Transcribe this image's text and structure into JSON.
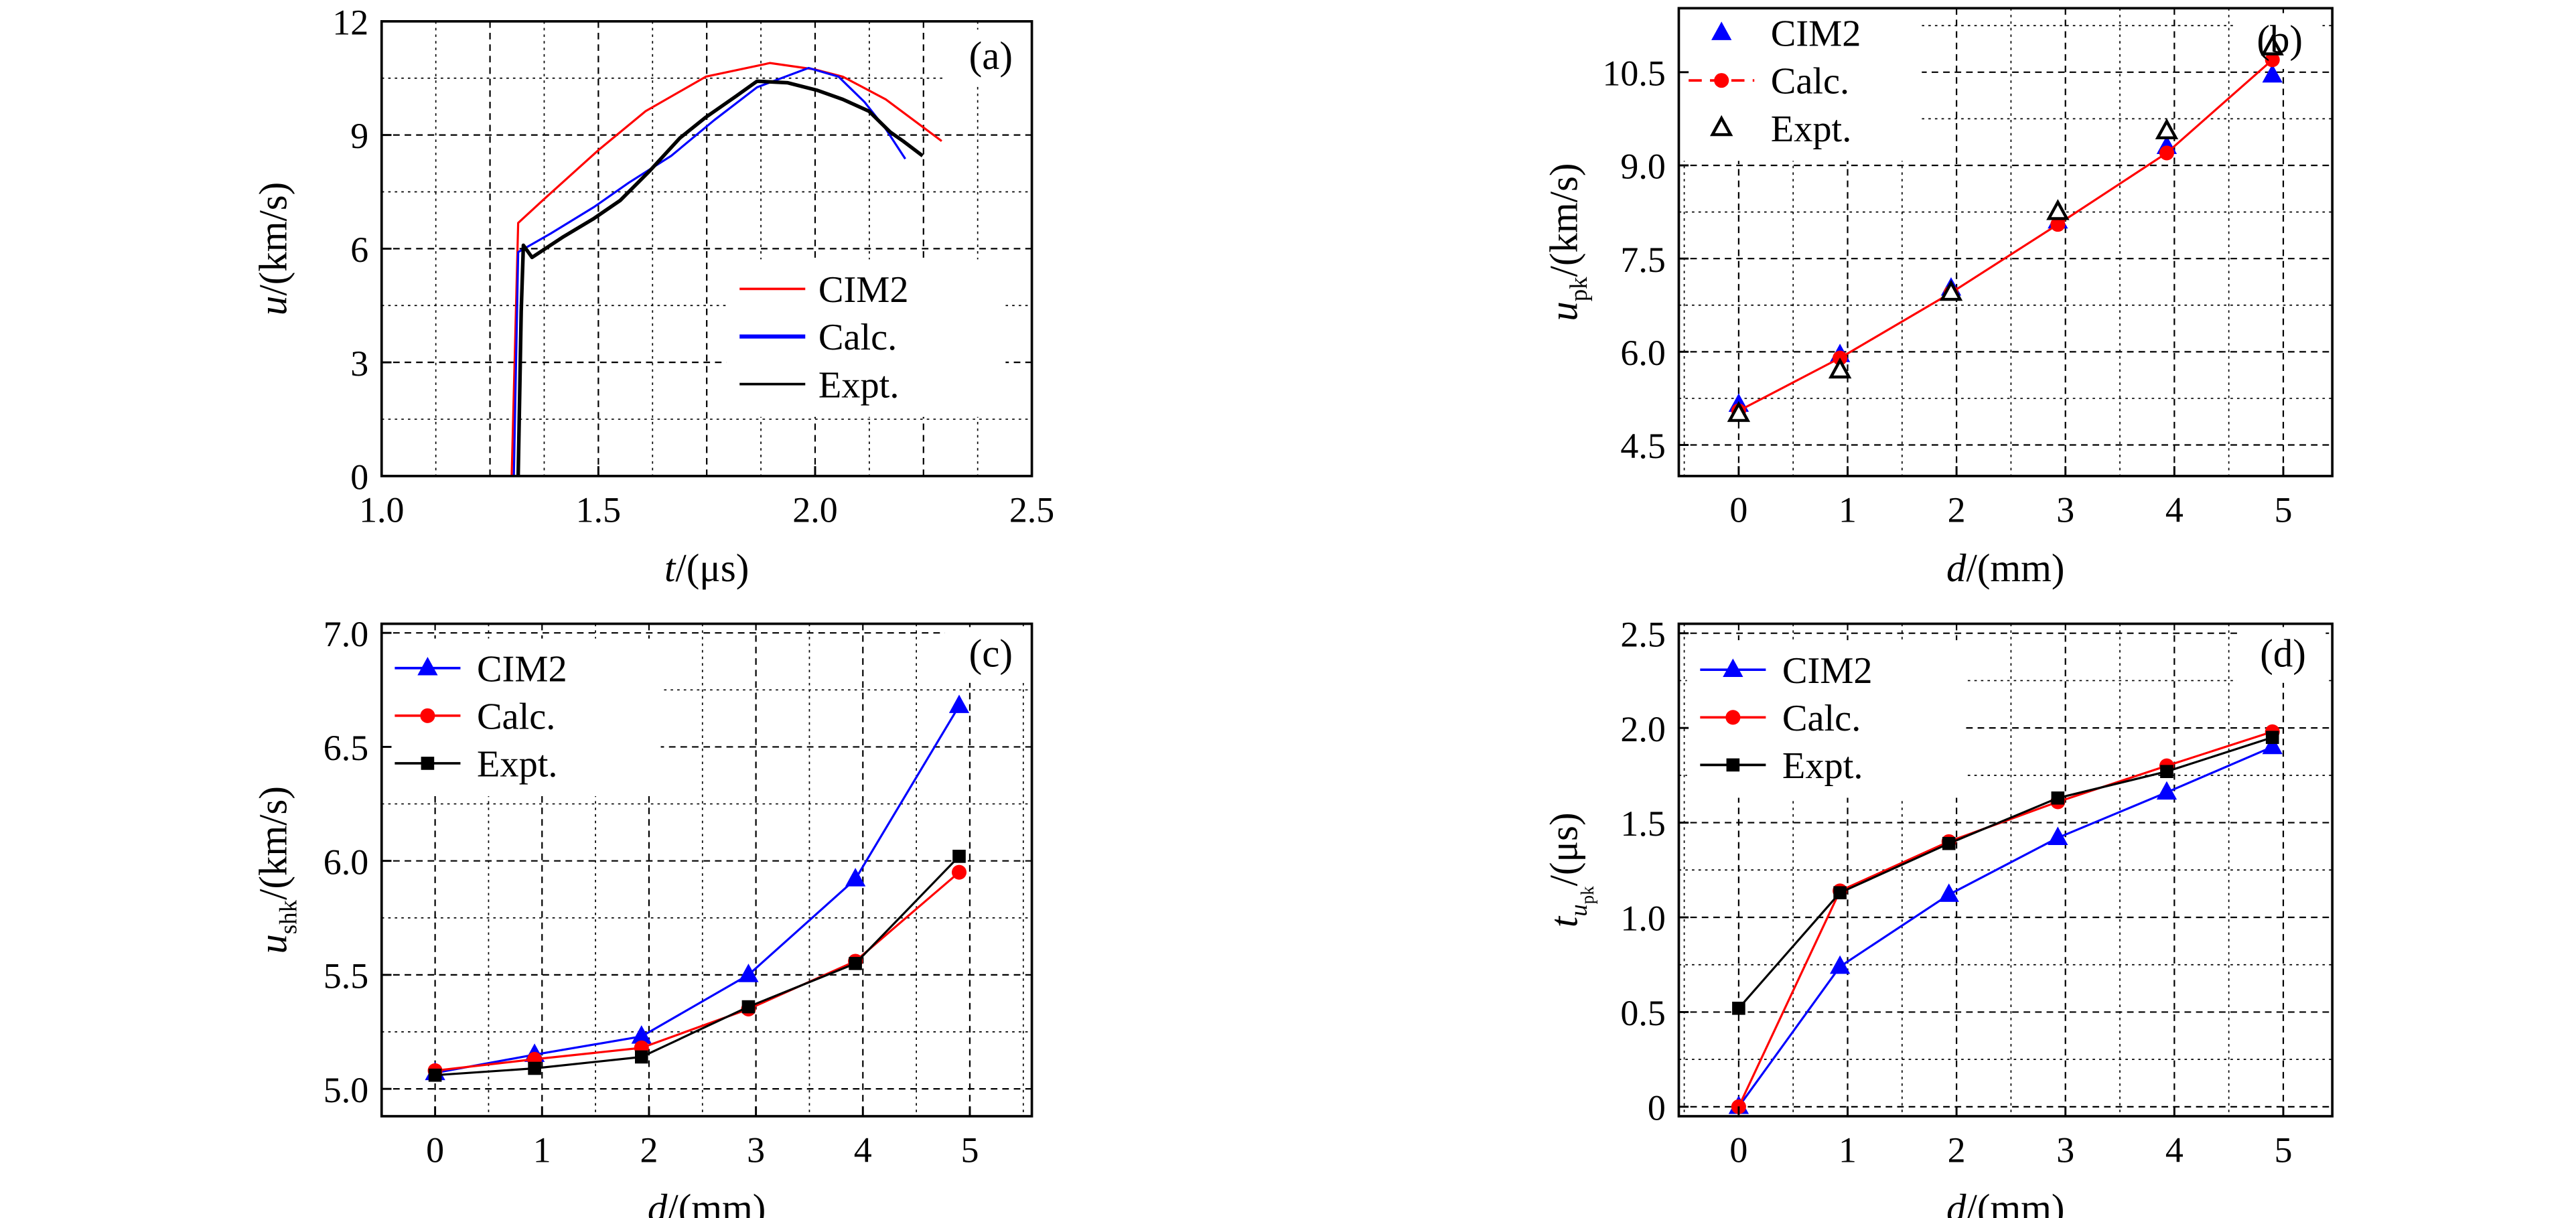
{
  "chart_data": [
    {
      "type": "line",
      "panel": "(a)",
      "xlabel": {
        "symbol": "t",
        "unit": "/(μs)"
      },
      "ylabel": {
        "symbol": "u",
        "sub": "",
        "subsub": "",
        "unit": "/(km/s)"
      },
      "xlim": [
        1.0,
        2.5
      ],
      "ylim": [
        0,
        12
      ],
      "xticks": [
        "1.0",
        "1.5",
        "2.0",
        "2.5"
      ],
      "yticks": [
        "0",
        "3",
        "6",
        "9",
        "12"
      ],
      "grid": true,
      "legend": "bottom-right",
      "series": [
        {
          "name": "CIM2",
          "color": "#ff0000",
          "marker": "none",
          "x": [
            1.3,
            1.315,
            1.371,
            1.5,
            1.609,
            1.748,
            1.896,
            2.0,
            2.064,
            2.163,
            2.292
          ],
          "y": [
            0,
            6.68,
            7.27,
            8.6,
            9.63,
            10.54,
            10.9,
            10.73,
            10.54,
            9.94,
            8.84
          ]
        },
        {
          "name": "Calc.",
          "color": "#0000ff",
          "marker": "none",
          "x": [
            1.305,
            1.315,
            1.39,
            1.49,
            1.57,
            1.668,
            1.767,
            1.866,
            1.985,
            2.054,
            2.114,
            2.163,
            2.208
          ],
          "y": [
            0,
            5.91,
            6.4,
            7.1,
            7.74,
            8.45,
            9.39,
            10.26,
            10.77,
            10.54,
            9.87,
            9.16,
            8.37
          ]
        },
        {
          "name": "Expt.",
          "color": "#000000",
          "marker": "none",
          "x": [
            1.315,
            1.322,
            1.327,
            1.347,
            1.42,
            1.49,
            1.55,
            1.619,
            1.688,
            1.748,
            1.817,
            1.866,
            1.936,
            2.005,
            2.064,
            2.124,
            2.173,
            2.203,
            2.248
          ],
          "y": [
            0,
            4.35,
            6.09,
            5.77,
            6.32,
            6.8,
            7.27,
            8.06,
            8.92,
            9.47,
            10.02,
            10.42,
            10.38,
            10.18,
            9.94,
            9.63,
            9.08,
            8.84,
            8.45
          ]
        }
      ]
    },
    {
      "type": "scatter",
      "panel": "(b)",
      "xlabel": {
        "symbol": "d",
        "unit": "/(mm)"
      },
      "ylabel": {
        "symbol": "u",
        "sub": "pk",
        "subsub": "",
        "unit": "/(km/s)"
      },
      "xlim": [
        -0.55,
        5.45
      ],
      "ylim": [
        4.0,
        11.53
      ],
      "xticks": [
        "0",
        "1",
        "2",
        "3",
        "4",
        "5"
      ],
      "yticks": [
        "4.5",
        "6.0",
        "7.5",
        "9.0",
        "10.5"
      ],
      "grid": true,
      "legend": "top-left",
      "series": [
        {
          "name": "CIM2",
          "color": "#0000ff",
          "marker": "triangle",
          "line": false,
          "x": [
            0,
            0.93,
            1.95,
            2.93,
            3.93,
            4.9
          ],
          "y": [
            5.15,
            5.95,
            7.02,
            8.1,
            9.3,
            10.45
          ]
        },
        {
          "name": "Calc.",
          "color": "#ff0000",
          "marker": "circle",
          "line": true,
          "x": [
            0,
            0.93,
            1.95,
            2.93,
            3.93,
            4.9
          ],
          "y": [
            5.05,
            5.9,
            6.95,
            8.05,
            9.2,
            10.7
          ]
        },
        {
          "name": "Expt.",
          "color": "#000000",
          "marker": "open-triangle",
          "line": false,
          "x": [
            0,
            0.93,
            1.95,
            2.93,
            3.93,
            4.9
          ],
          "y": [
            5.0,
            5.7,
            6.95,
            8.25,
            9.55,
            10.9
          ]
        }
      ]
    },
    {
      "type": "line",
      "panel": "(c)",
      "xlabel": {
        "symbol": "d",
        "unit": "/(mm)"
      },
      "ylabel": {
        "symbol": "u",
        "sub": "shk",
        "subsub": "",
        "unit": "/(km/s)"
      },
      "xlim": [
        -0.5,
        5.58
      ],
      "ylim": [
        4.88,
        7.04
      ],
      "xticks": [
        "0",
        "1",
        "2",
        "3",
        "4",
        "5"
      ],
      "yticks": [
        "5.0",
        "5.5",
        "6.0",
        "6.5",
        "7.0"
      ],
      "grid": true,
      "legend": "top-left",
      "series": [
        {
          "name": "CIM2",
          "color": "#0000ff",
          "marker": "triangle",
          "line": true,
          "x": [
            0,
            0.93,
            1.93,
            2.93,
            3.93,
            4.9
          ],
          "y": [
            5.07,
            5.15,
            5.23,
            5.5,
            5.92,
            6.68
          ]
        },
        {
          "name": "Calc.",
          "color": "#ff0000",
          "marker": "circle",
          "line": true,
          "x": [
            0,
            0.93,
            1.93,
            2.93,
            3.93,
            4.9
          ],
          "y": [
            5.08,
            5.13,
            5.18,
            5.35,
            5.56,
            5.95
          ]
        },
        {
          "name": "Expt.",
          "color": "#000000",
          "marker": "square",
          "line": true,
          "x": [
            0,
            0.93,
            1.93,
            2.93,
            3.93,
            4.9
          ],
          "y": [
            5.06,
            5.09,
            5.14,
            5.36,
            5.55,
            6.02
          ]
        }
      ]
    },
    {
      "type": "line",
      "panel": "(d)",
      "xlabel": {
        "symbol": "d",
        "unit": "/(mm)"
      },
      "ylabel": {
        "symbol": "t",
        "sub": "u",
        "subsub": "pk",
        "unit": "/(μs)"
      },
      "xlim": [
        -0.55,
        5.45
      ],
      "ylim": [
        -0.05,
        2.55
      ],
      "xticks": [
        "0",
        "1",
        "2",
        "3",
        "4",
        "5"
      ],
      "yticks": [
        "0",
        "0.5",
        "1.0",
        "1.5",
        "2.0",
        "2.5"
      ],
      "grid": true,
      "legend": "top-left",
      "series": [
        {
          "name": "CIM2",
          "color": "#0000ff",
          "marker": "triangle",
          "line": true,
          "x": [
            0,
            0.93,
            1.93,
            2.93,
            3.93,
            4.9
          ],
          "y": [
            0,
            0.74,
            1.12,
            1.42,
            1.66,
            1.9
          ]
        },
        {
          "name": "Calc.",
          "color": "#ff0000",
          "marker": "circle",
          "line": true,
          "x": [
            0,
            0.93,
            1.93,
            2.93,
            3.93,
            4.9
          ],
          "y": [
            0,
            1.14,
            1.4,
            1.61,
            1.8,
            1.98
          ]
        },
        {
          "name": "Expt.",
          "color": "#000000",
          "marker": "square",
          "line": true,
          "x": [
            0,
            0.93,
            1.93,
            2.93,
            3.93,
            4.9
          ],
          "y": [
            0.52,
            1.13,
            1.39,
            1.63,
            1.77,
            1.95
          ]
        }
      ]
    }
  ]
}
